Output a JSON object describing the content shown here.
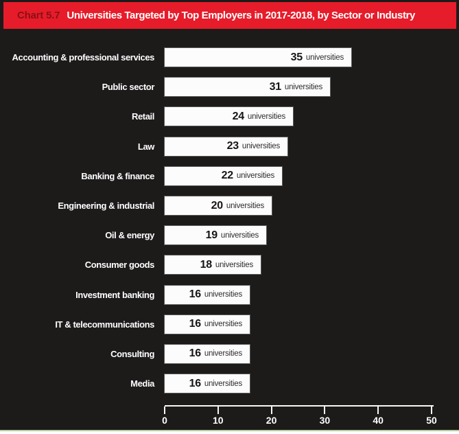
{
  "header": {
    "chart_label": "Chart 5.7",
    "title": "Universities Targeted by Top Employers in 2017-2018, by Sector or Industry"
  },
  "chart_data": {
    "type": "bar",
    "orientation": "horizontal",
    "title": "Universities Targeted by Top Employers in 2017-2018, by Sector or Industry",
    "categories": [
      "Accounting & professional services",
      "Public sector",
      "Retail",
      "Law",
      "Banking & finance",
      "Engineering & industrial",
      "Oil & energy",
      "Consumer goods",
      "Investment banking",
      "IT & telecommunications",
      "Consulting",
      "Media"
    ],
    "values": [
      35,
      31,
      24,
      23,
      22,
      20,
      19,
      18,
      16,
      16,
      16,
      16
    ],
    "value_suffix": "universities",
    "xlabel": "",
    "ylabel": "",
    "xlim": [
      0,
      50
    ],
    "x_ticks": [
      0,
      10,
      20,
      30,
      40,
      50
    ],
    "grid": false,
    "legend": "none",
    "colors": {
      "header_red": "#e61c2a",
      "header_label_dark_red": "#8c1016",
      "background_black": "#1d1a1a",
      "bar_white": "#fcfcfc",
      "bar_text_black": "#171414",
      "axis_white": "#f7f7f7",
      "bottom_edge_green": "#b5cfa2"
    }
  }
}
